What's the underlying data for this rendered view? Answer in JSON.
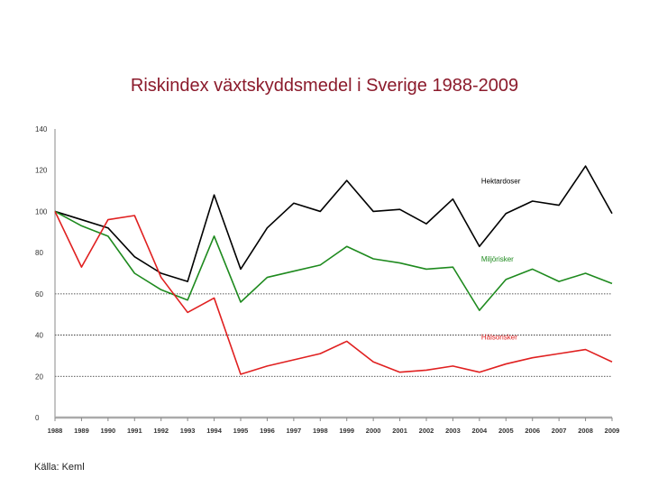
{
  "title": "Riskindex växtskyddsmedel i Sverige 1988-2009",
  "source": "Källa: Keml",
  "chart_data": {
    "type": "line",
    "title": "Riskindex växtskyddsmedel i Sverige 1988-2009",
    "xlabel": "",
    "ylabel": "",
    "x": [
      "1988",
      "1989",
      "1990",
      "1991",
      "1992",
      "1993",
      "1994",
      "1995",
      "1996",
      "1997",
      "1998",
      "1999",
      "2000",
      "2001",
      "2002",
      "2003",
      "2004",
      "2005",
      "2006",
      "2007",
      "2008",
      "2009"
    ],
    "ylim": [
      0,
      140
    ],
    "yticks": [
      0,
      20,
      40,
      60,
      80,
      100,
      120,
      140
    ],
    "dotted_gridlines": [
      20,
      40,
      60
    ],
    "series": [
      {
        "name": "Hektardoser",
        "color": "#000000",
        "values": [
          100,
          96,
          92,
          78,
          70,
          66,
          108,
          72,
          92,
          104,
          100,
          115,
          100,
          101,
          94,
          106,
          83,
          99,
          105,
          103,
          122,
          99
        ]
      },
      {
        "name": "Miljörisker",
        "color": "#1e8a1e",
        "values": [
          100,
          93,
          88,
          70,
          62,
          57,
          88,
          56,
          68,
          71,
          74,
          83,
          77,
          75,
          72,
          73,
          52,
          67,
          72,
          66,
          70,
          65
        ]
      },
      {
        "name": "Hälsorisker",
        "color": "#e02020",
        "values": [
          100,
          73,
          96,
          98,
          68,
          51,
          58,
          21,
          25,
          28,
          31,
          37,
          27,
          22,
          23,
          25,
          22,
          26,
          29,
          31,
          33,
          27
        ]
      }
    ]
  }
}
